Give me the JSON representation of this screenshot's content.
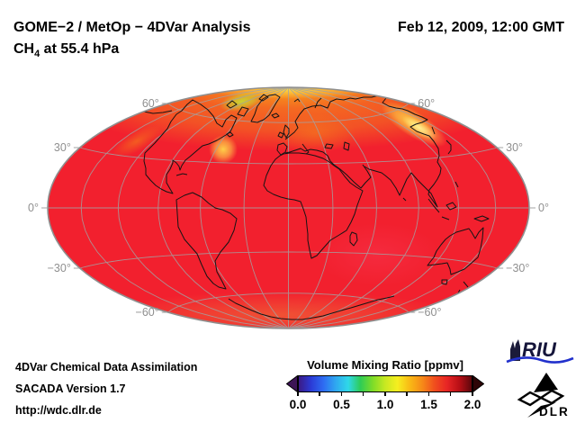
{
  "header": {
    "title_line1": "GOME−2 / MetOp − 4DVar Analysis",
    "molecule_prefix": "CH",
    "molecule_sub": "4",
    "level_text": " at 55.4 hPa",
    "datetime": "Feb 12, 2009, 12:00 GMT"
  },
  "footer": {
    "lines": [
      "4DVar Chemical Data Assimilation",
      "SACADA Version 1.7",
      "http://wdc.dlr.de"
    ]
  },
  "logos": {
    "riu": {
      "text": "RIU",
      "wave_color": "#2231cc"
    },
    "dlr": {
      "text": "DLR"
    }
  },
  "chart_data": {
    "type": "heatmap",
    "title": "GOME−2 / MetOp − 4DVar Analysis",
    "subtitle": "CH4 at 55.4 hPa",
    "timestamp": "Feb 12, 2009, 12:00 GMT",
    "projection": "Hammer elliptical world map, graticule every 30 deg",
    "base_color": "#f2202e",
    "colorbar": {
      "label": "Volume Mixing Ratio [ppmv]",
      "range": [
        0,
        2
      ],
      "major_ticks": [
        0.0,
        0.5,
        1.0,
        1.5,
        2.0
      ],
      "major_tick_labels": [
        "0.0",
        "0.5",
        "1.0",
        "1.5",
        "2.0"
      ],
      "minor_ticks": [
        0,
        0.25,
        0.5,
        0.75,
        1.0,
        1.25,
        1.5,
        1.75,
        2.0
      ],
      "colormap": [
        "#3b1a86",
        "#2b3bd6",
        "#2e6cf2",
        "#2fa8f0",
        "#2fd8e8",
        "#2ecc55",
        "#7fdc28",
        "#c8e822",
        "#f6ee20",
        "#f9b915",
        "#f68a18",
        "#f04e1e",
        "#e82525",
        "#b80f16",
        "#5e070c"
      ],
      "underflow_arrow_color": "#3d1456",
      "overflow_arrow_color": "#2e0507",
      "legend_position": "bottom-center"
    },
    "graticule": {
      "parallels_deg": [
        60,
        30,
        0,
        -30,
        -60
      ],
      "parallel_labels": [
        "60°",
        "30°",
        "0°",
        "−30°",
        "−60°"
      ],
      "meridian_step_deg": 30,
      "grid_on": true
    },
    "field_estimates_ppmv": [
      {
        "region": "Global background / tropics and southern hemisphere (red)",
        "value": 1.75
      },
      {
        "region": "Northern high-latitude band (orange)",
        "value": 1.45
      },
      {
        "region": "Arctic maxima: Newfoundland blob, Kamchatka / East Siberia streak (yellow)",
        "value": 1.25
      },
      {
        "region": "Canadian Arctic patch (yellow-green)",
        "value": 1.1
      },
      {
        "region": "Antarctic rim (orange tint)",
        "value": 1.55
      }
    ]
  }
}
